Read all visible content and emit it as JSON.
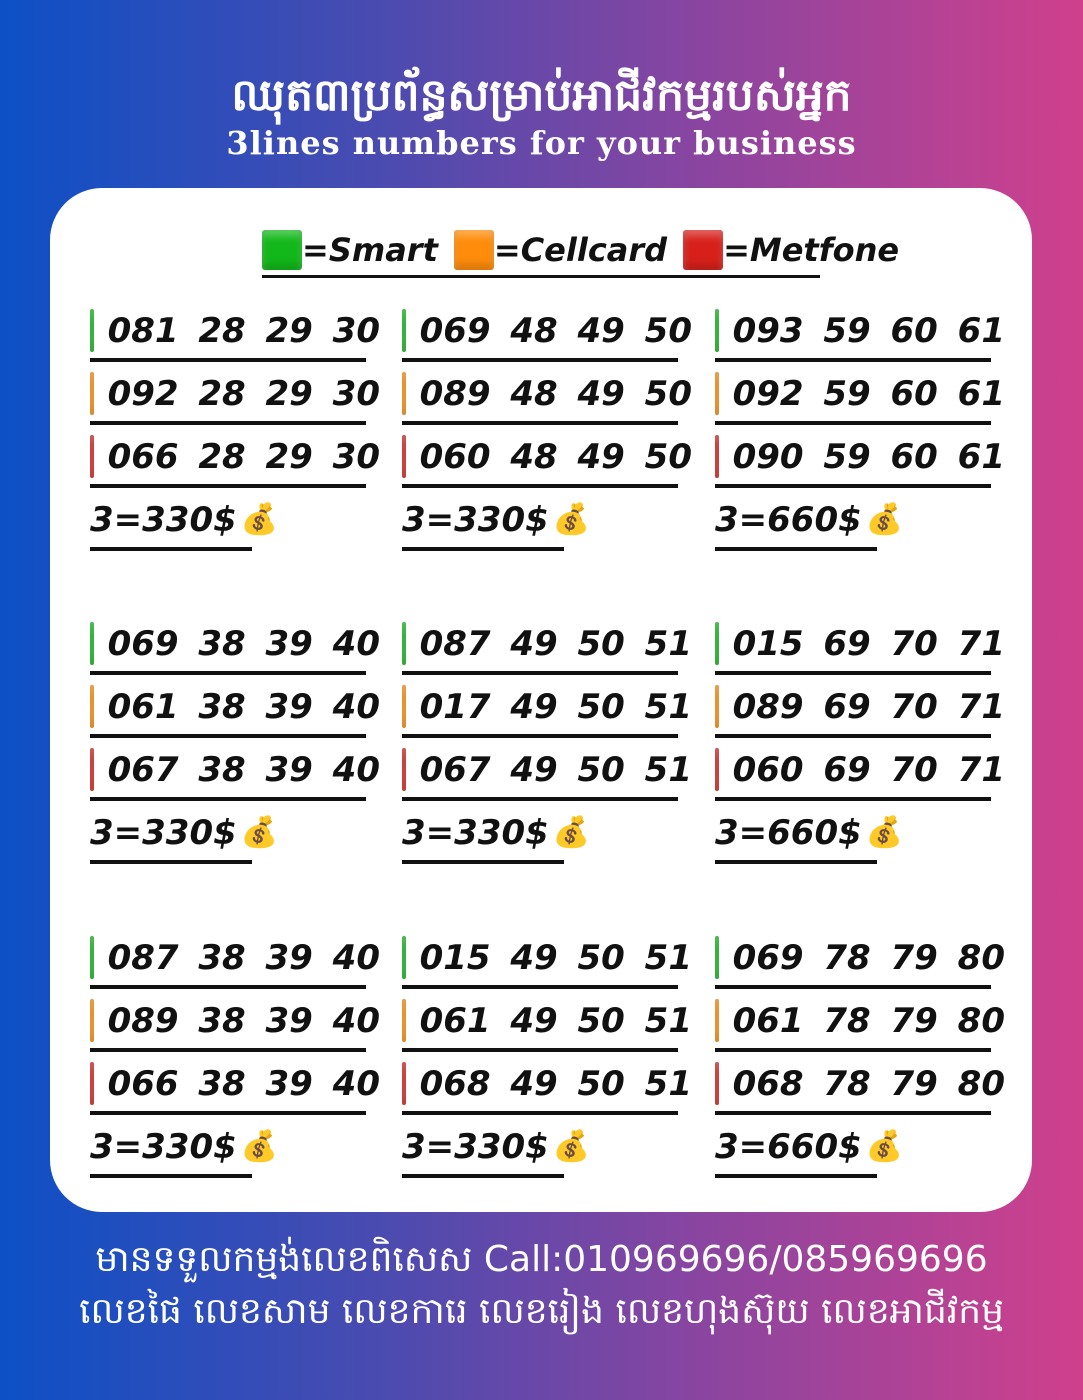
{
  "header": {
    "title_km": "ឈុត៣ប្រព័ន្ធសម្រាប់អាជីវកម្មរបស់អ្នក",
    "subtitle": "3lines numbers for your business"
  },
  "legend": [
    {
      "label": "=Smart",
      "color": "#12b81a"
    },
    {
      "label": "=Cellcard",
      "color": "#ff8c0a"
    },
    {
      "label": "=Metfone",
      "color": "#d8201a"
    }
  ],
  "groups": [
    {
      "numbers": [
        "081 28 29 30",
        "092 28 29 30",
        "066 28 29 30"
      ],
      "price": "3=330$"
    },
    {
      "numbers": [
        "069 48 49 50",
        "089 48 49 50",
        "060 48 49 50"
      ],
      "price": "3=330$"
    },
    {
      "numbers": [
        "093 59 60 61",
        "092 59 60 61",
        "090 59 60 61"
      ],
      "price": "3=660$"
    },
    {
      "numbers": [
        "069 38 39 40",
        "061 38 39 40",
        "067 38 39 40"
      ],
      "price": "3=330$"
    },
    {
      "numbers": [
        "087 49 50 51",
        "017 49 50 51",
        "067 49 50 51"
      ],
      "price": "3=330$"
    },
    {
      "numbers": [
        "015 69 70 71",
        "089 69 70 71",
        "060 69 70 71"
      ],
      "price": "3=660$"
    },
    {
      "numbers": [
        "087 38 39 40",
        "089 38 39 40",
        "066 38 39 40"
      ],
      "price": "3=330$"
    },
    {
      "numbers": [
        "015 49 50 51",
        "061 49 50 51",
        "068 49 50 51"
      ],
      "price": "3=330$"
    },
    {
      "numbers": [
        "069 78 79 80",
        "061 78 79 80",
        "068 78 79 80"
      ],
      "price": "3=660$"
    }
  ],
  "price_icon": "money-bag-icon",
  "footer": {
    "line1": "មានទទួលកម្មង់លេខពិសេស Call:010969696/085969696",
    "line2": "លេខផៃ លេខសាម លេខការេ លេខរៀង លេខហុងស៊ុយ លេខអាជីវកម្ម"
  }
}
